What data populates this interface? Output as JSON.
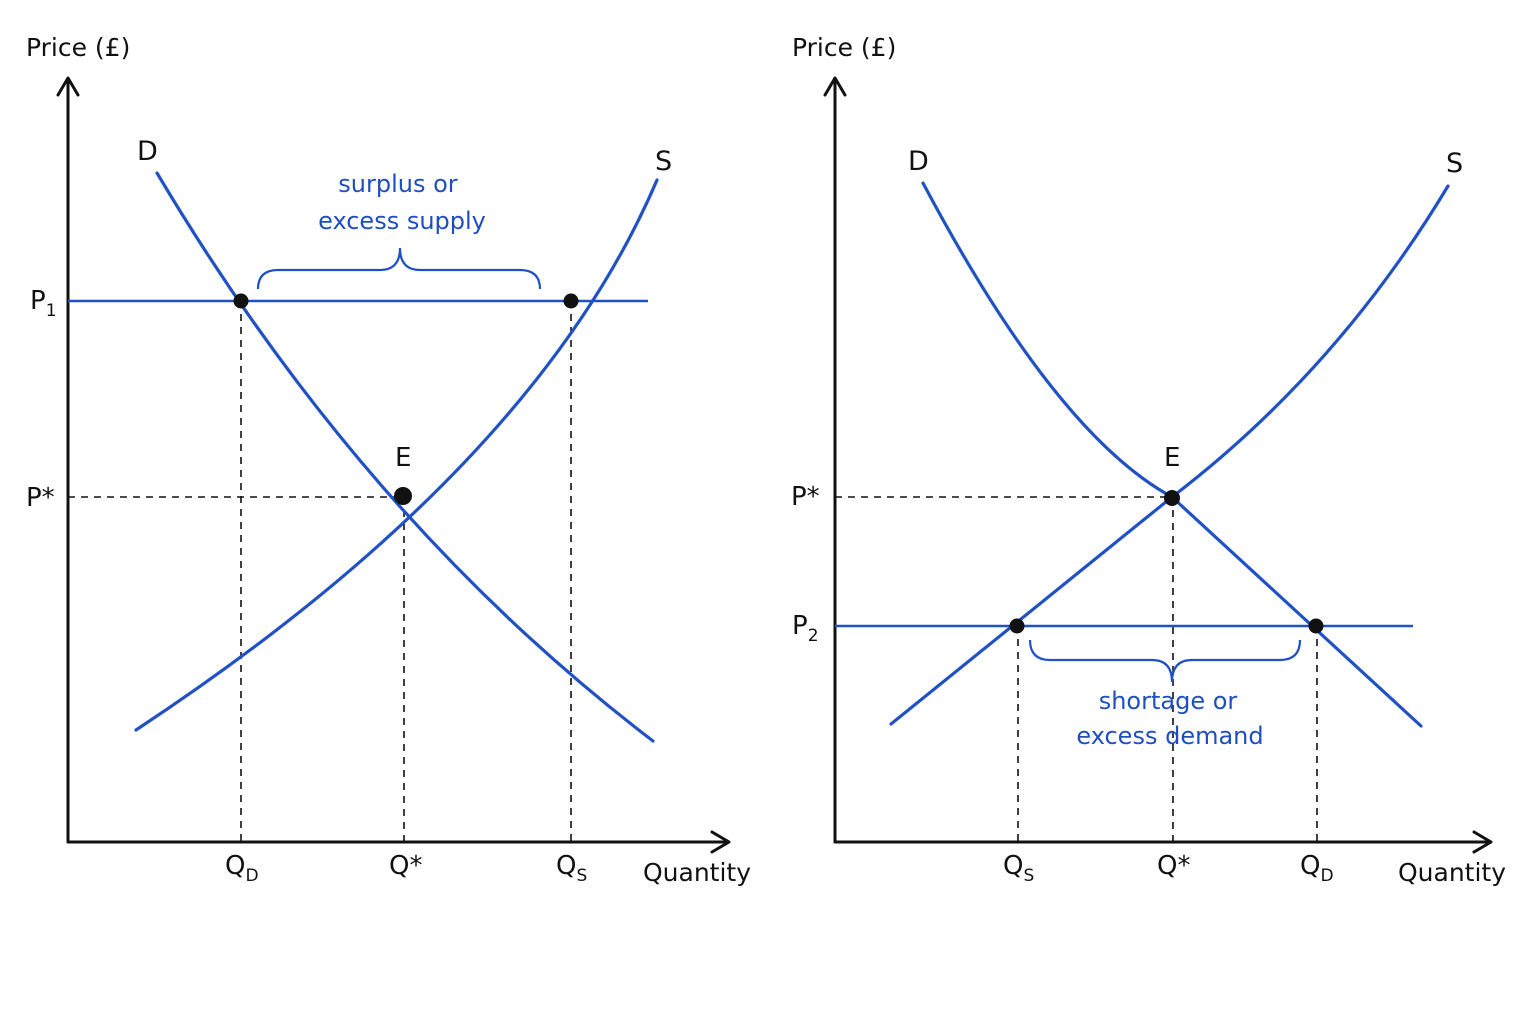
{
  "colors": {
    "curve": "#2152c4",
    "price_line": "#2152c4",
    "axis": "#111111",
    "guide": "#111111",
    "point": "#111111",
    "annotation": "#1f4fbf"
  },
  "left": {
    "y_axis_title": "Price (£)",
    "x_axis_title": "Quantity",
    "demand_label": "D",
    "supply_label": "S",
    "equilibrium_label": "E",
    "price_high": {
      "main": "P",
      "sub": "1"
    },
    "price_eq": "P*",
    "qty_demanded": {
      "main": "Q",
      "sub": "D"
    },
    "qty_eq": "Q*",
    "qty_supplied": {
      "main": "Q",
      "sub": "S"
    },
    "annotation_line1": "surplus or",
    "annotation_line2": "excess supply"
  },
  "right": {
    "y_axis_title": "Price (£)",
    "x_axis_title": "Quantity",
    "demand_label": "D",
    "supply_label": "S",
    "equilibrium_label": "E",
    "price_eq": "P*",
    "price_low": {
      "main": "P",
      "sub": "2"
    },
    "qty_supplied": {
      "main": "Q",
      "sub": "S"
    },
    "qty_eq": "Q*",
    "qty_demanded": {
      "main": "Q",
      "sub": "D"
    },
    "annotation_line1": "shortage or",
    "annotation_line2": "excess demand"
  }
}
